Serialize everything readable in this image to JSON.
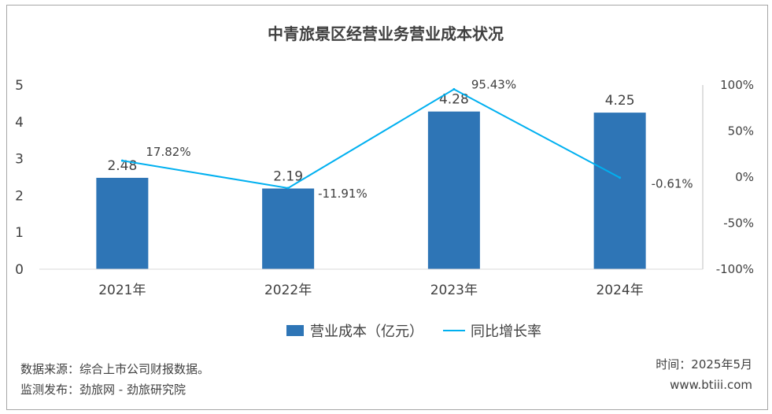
{
  "chart_data": {
    "type": "bar",
    "title": "中青旅景区经营业务营业成本状况",
    "categories": [
      "2021年",
      "2022年",
      "2023年",
      "2024年"
    ],
    "series": [
      {
        "name": "营业成本（亿元）",
        "type": "bar",
        "axis": "left",
        "values": [
          2.48,
          2.19,
          4.28,
          4.25
        ],
        "labels": [
          "2.48",
          "2.19",
          "4.28",
          "4.25"
        ],
        "color": "#2e75b6"
      },
      {
        "name": "同比增长率",
        "type": "line",
        "axis": "right",
        "values": [
          17.82,
          -11.91,
          95.43,
          -0.61
        ],
        "labels": [
          "17.82%",
          "-11.91%",
          "95.43%",
          "-0.61%"
        ],
        "color": "#00b0f0"
      }
    ],
    "ylim": [
      0,
      5
    ],
    "yticks": [
      "0",
      "1",
      "2",
      "3",
      "4",
      "5"
    ],
    "y2lim": [
      -100,
      100
    ],
    "y2ticks": [
      "-100%",
      "-50%",
      "0%",
      "50%",
      "100%"
    ],
    "grid": false,
    "legend": "bottom"
  },
  "footer": {
    "source": "数据来源：综合上市公司财报数据。",
    "monitor": "监测发布：劲旅网 - 劲旅研究院",
    "time": "时间：2025年5月",
    "site": "www.btiii.com"
  }
}
